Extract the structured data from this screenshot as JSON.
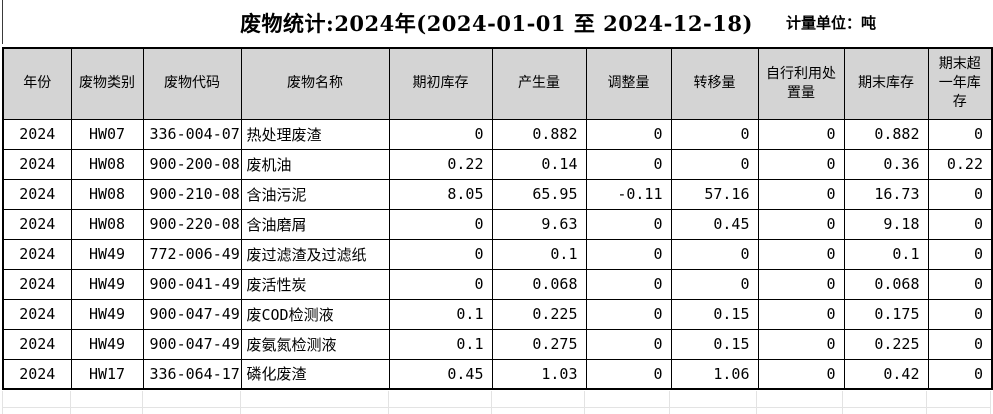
{
  "header": {
    "title": "废物统计:2024年(2024-01-01 至 2024-12-18)",
    "unit_label": "计量单位：吨"
  },
  "table": {
    "columns": [
      "年份",
      "废物类别",
      "废物代码",
      "废物名称",
      "期初库存",
      "产生量",
      "调整量",
      "转移量",
      "自行利用处置量",
      "期末库存",
      "期末超一年库存"
    ],
    "rows": [
      [
        "2024",
        "HW07",
        "336-004-07",
        "热处理废渣",
        "0",
        "0.882",
        "0",
        "0",
        "0",
        "0.882",
        "0"
      ],
      [
        "2024",
        "HW08",
        "900-200-08",
        "废机油",
        "0.22",
        "0.14",
        "0",
        "0",
        "0",
        "0.36",
        "0.22"
      ],
      [
        "2024",
        "HW08",
        "900-210-08",
        "含油污泥",
        "8.05",
        "65.95",
        "-0.11",
        "57.16",
        "0",
        "16.73",
        "0"
      ],
      [
        "2024",
        "HW08",
        "900-220-08",
        "含油磨屑",
        "0",
        "9.63",
        "0",
        "0.45",
        "0",
        "9.18",
        "0"
      ],
      [
        "2024",
        "HW49",
        "772-006-49",
        "废过滤渣及过滤纸",
        "0",
        "0.1",
        "0",
        "0",
        "0",
        "0.1",
        "0"
      ],
      [
        "2024",
        "HW49",
        "900-041-49",
        "废活性炭",
        "0",
        "0.068",
        "0",
        "0",
        "0",
        "0.068",
        "0"
      ],
      [
        "2024",
        "HW49",
        "900-047-49",
        "废COD检测液",
        "0.1",
        "0.225",
        "0",
        "0.15",
        "0",
        "0.175",
        "0"
      ],
      [
        "2024",
        "HW49",
        "900-047-49",
        "废氨氮检测液",
        "0.1",
        "0.275",
        "0",
        "0.15",
        "0",
        "0.225",
        "0"
      ],
      [
        "2024",
        "HW17",
        "336-064-17",
        "磷化废渣",
        "0.45",
        "1.03",
        "0",
        "1.06",
        "0",
        "0.42",
        "0"
      ]
    ]
  },
  "colors": {
    "header_bg": "#d4d4d4",
    "table_border": "#000000",
    "ghost_gridline": "#e3e3e3"
  }
}
